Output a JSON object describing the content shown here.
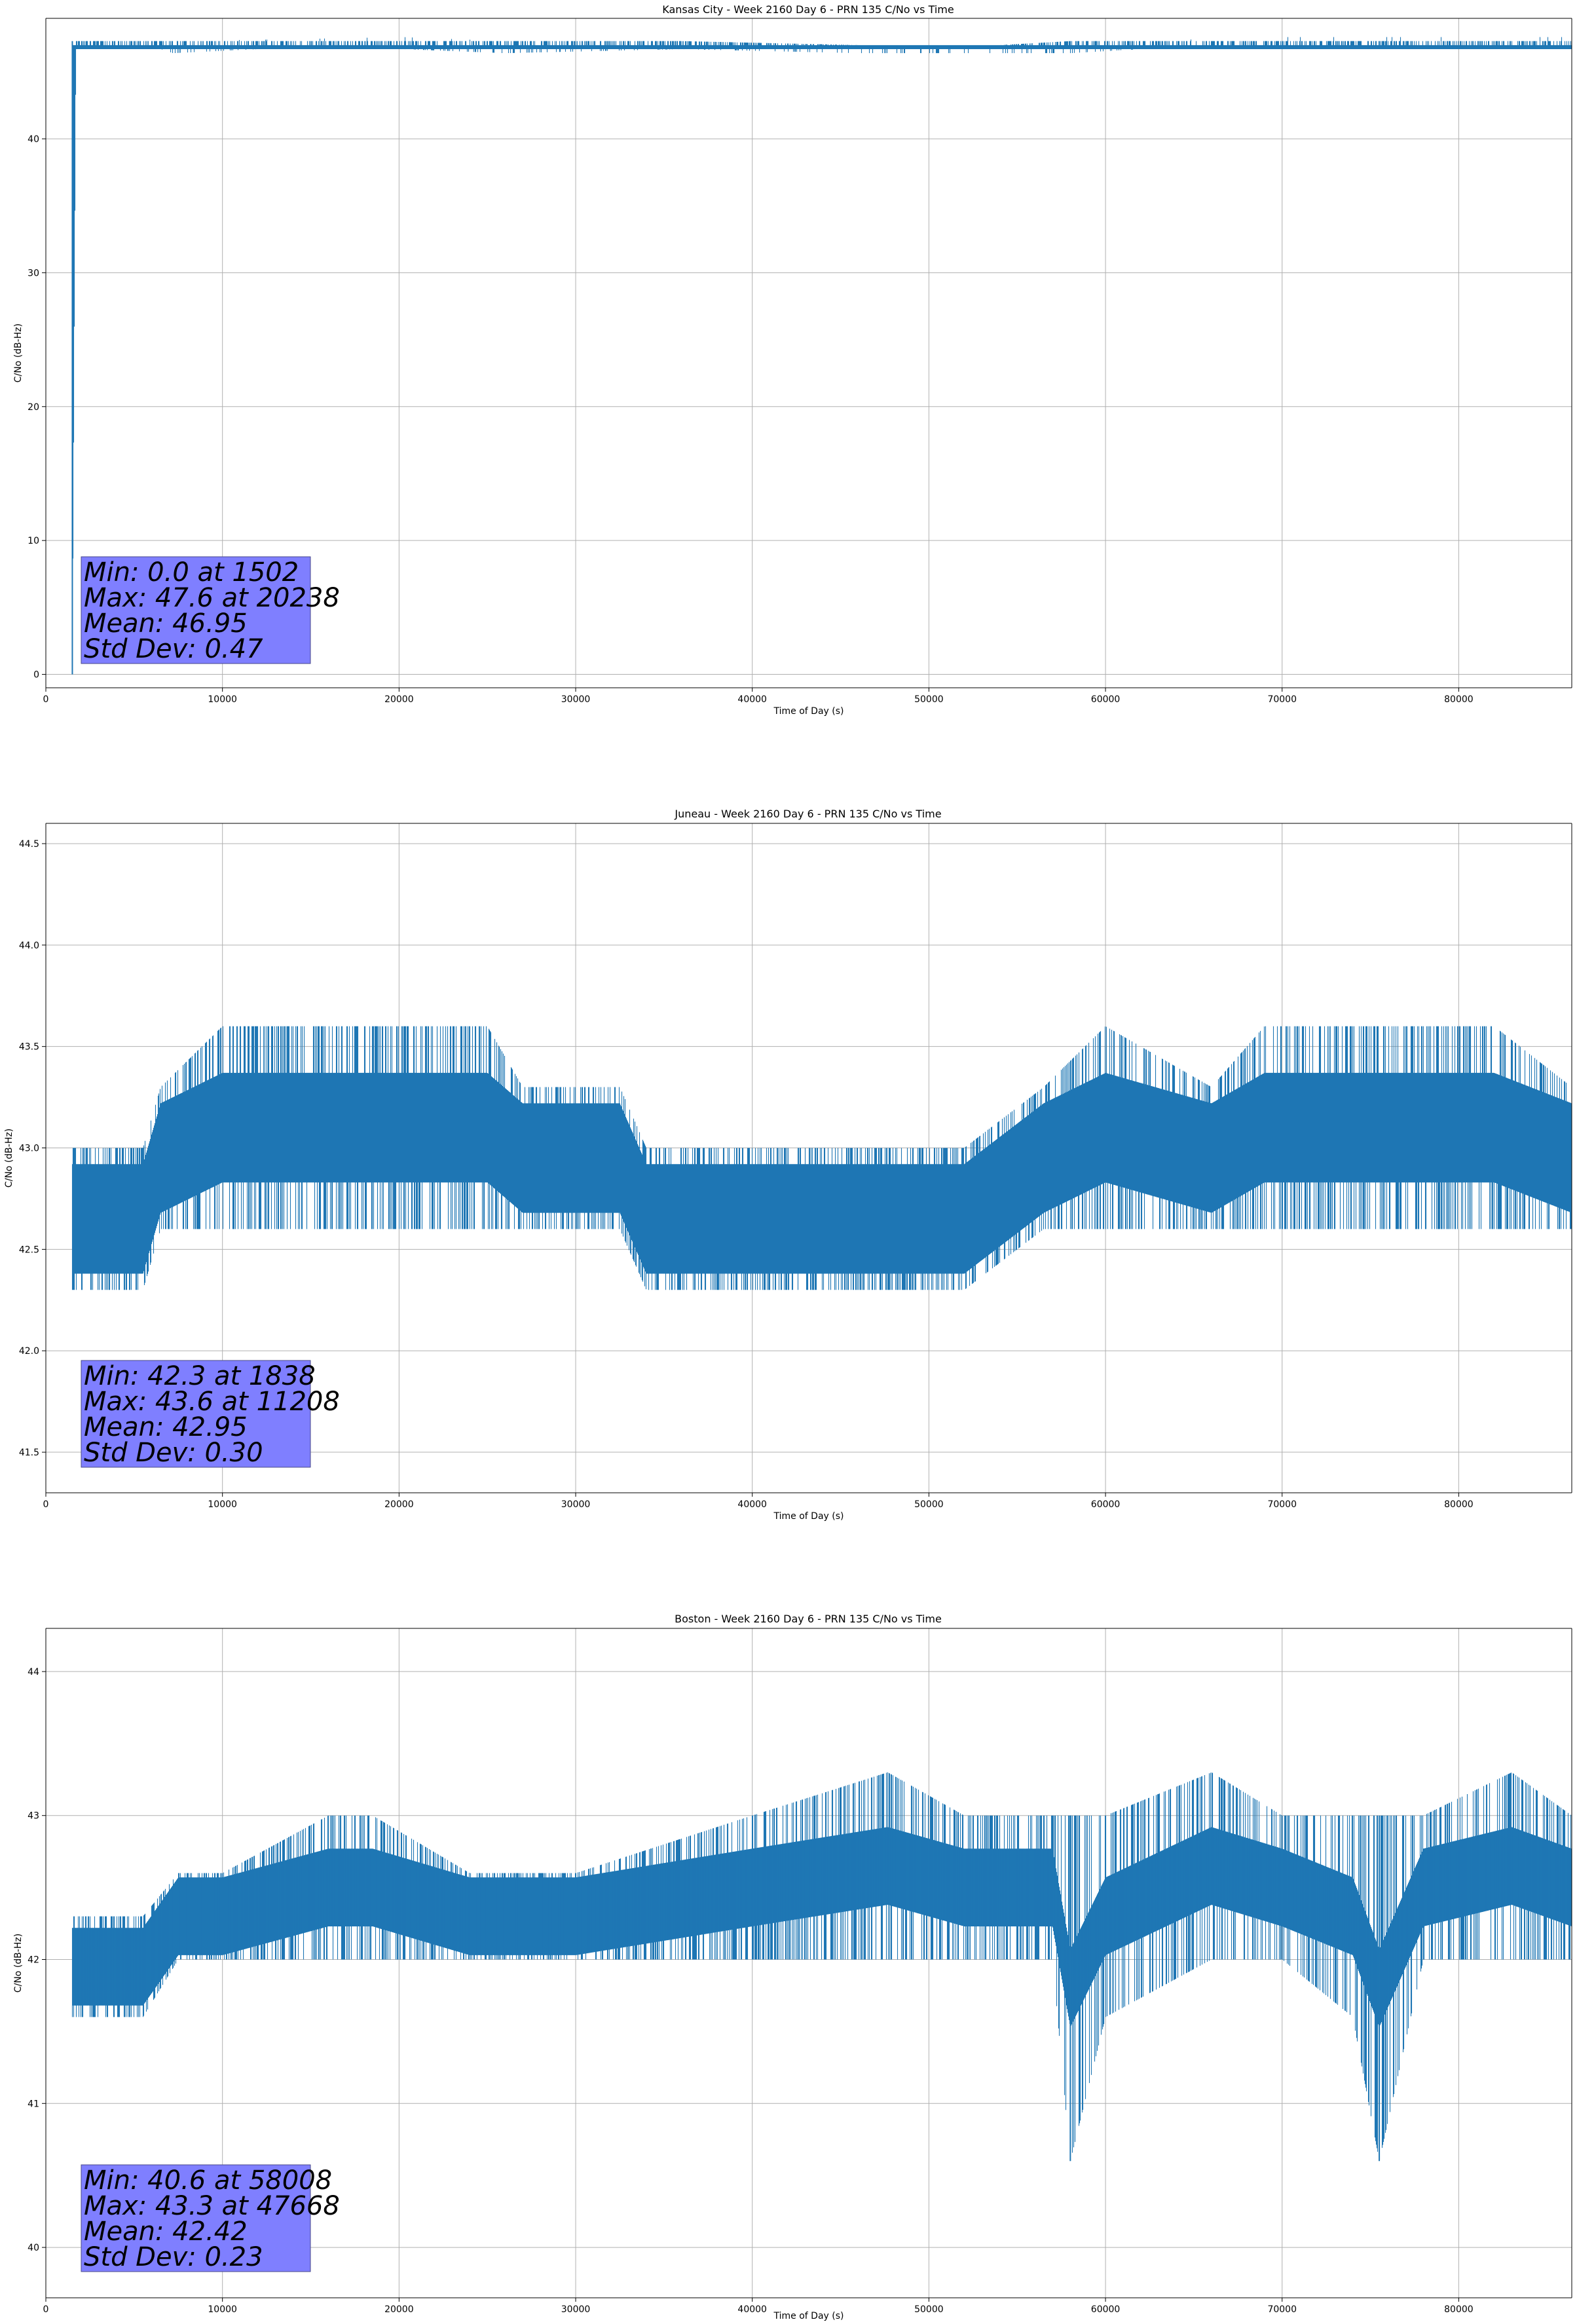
{
  "chart_data": [
    {
      "type": "line",
      "title": "Kansas City - Week 2160 Day 6 - PRN 135 C/No vs Time",
      "xlabel": "Time of Day (s)",
      "ylabel": "C/No (dB-Hz)",
      "xlim": [
        0,
        86400
      ],
      "ylim": [
        -1,
        49
      ],
      "xticks": [
        0,
        10000,
        20000,
        30000,
        40000,
        50000,
        60000,
        70000,
        80000
      ],
      "xtick_labels": [
        "0",
        "10000",
        "20000",
        "30000",
        "40000",
        "50000",
        "60000",
        "70000",
        "80000"
      ],
      "yticks": [
        0,
        10,
        20,
        30,
        40
      ],
      "ytick_labels": [
        "0",
        "10",
        "20",
        "30",
        "40"
      ],
      "grid": true,
      "color": "#1f77b4",
      "series": [
        {
          "band": [
            [
              1500,
              0.0,
              47.3
            ],
            [
              1700,
              46.7,
              47.3
            ],
            [
              6500,
              46.7,
              47.3
            ],
            [
              7200,
              46.4,
              47.3
            ],
            [
              12000,
              46.7,
              47.4
            ],
            [
              20238,
              46.7,
              47.6
            ],
            [
              26000,
              46.4,
              47.3
            ],
            [
              36000,
              46.7,
              47.3
            ],
            [
              46000,
              46.4,
              47.0
            ],
            [
              50000,
              46.2,
              47.0
            ],
            [
              54000,
              46.2,
              47.0
            ],
            [
              58000,
              46.4,
              47.3
            ],
            [
              62000,
              46.7,
              47.3
            ],
            [
              69000,
              46.7,
              47.6
            ],
            [
              86400,
              46.7,
              47.6
            ]
          ]
        }
      ],
      "stats": [
        "Min: 0.0 at 1502",
        "Max: 47.6 at 20238",
        "Mean: 46.95",
        "Std Dev: 0.47"
      ]
    },
    {
      "type": "line",
      "title": "Juneau - Week 2160 Day 6 - PRN 135 C/No vs Time",
      "xlabel": "Time of Day (s)",
      "ylabel": "C/No (dB-Hz)",
      "xlim": [
        0,
        86400
      ],
      "ylim": [
        41.3,
        44.6
      ],
      "xticks": [
        0,
        10000,
        20000,
        30000,
        40000,
        50000,
        60000,
        70000,
        80000
      ],
      "xtick_labels": [
        "0",
        "10000",
        "20000",
        "30000",
        "40000",
        "50000",
        "60000",
        "70000",
        "80000"
      ],
      "yticks": [
        41.5,
        42.0,
        42.5,
        43.0,
        43.5,
        44.0,
        44.5
      ],
      "ytick_labels": [
        "41.5",
        "42.0",
        "42.5",
        "43.0",
        "43.5",
        "44.0",
        "44.5"
      ],
      "grid": true,
      "color": "#1f77b4",
      "series": [
        {
          "band": [
            [
              1500,
              42.3,
              43.0
            ],
            [
              2000,
              42.3,
              43.0
            ],
            [
              5500,
              42.3,
              43.0
            ],
            [
              6500,
              42.6,
              43.3
            ],
            [
              10000,
              42.6,
              43.6
            ],
            [
              14500,
              42.6,
              43.6
            ],
            [
              18000,
              42.6,
              43.6
            ],
            [
              22000,
              42.6,
              43.6
            ],
            [
              25000,
              42.6,
              43.6
            ],
            [
              27000,
              42.6,
              43.3
            ],
            [
              32500,
              42.6,
              43.3
            ],
            [
              34000,
              42.3,
              43.0
            ],
            [
              40000,
              42.3,
              43.0
            ],
            [
              44000,
              42.3,
              43.0
            ],
            [
              52000,
              42.3,
              43.0
            ],
            [
              56500,
              42.6,
              43.3
            ],
            [
              60000,
              42.6,
              43.6
            ],
            [
              66000,
              42.6,
              43.3
            ],
            [
              69000,
              42.6,
              43.6
            ],
            [
              72000,
              42.6,
              43.6
            ],
            [
              82000,
              42.6,
              43.6
            ],
            [
              86400,
              42.6,
              43.3
            ]
          ]
        }
      ],
      "stats": [
        "Min: 42.3 at 1838",
        "Max: 43.6 at 11208",
        "Mean: 42.95",
        "Std Dev: 0.30"
      ]
    },
    {
      "type": "line",
      "title": "Boston - Week 2160 Day 6 - PRN 135 C/No vs Time",
      "xlabel": "Time of Day (s)",
      "ylabel": "C/No (dB-Hz)",
      "xlim": [
        0,
        86400
      ],
      "ylim": [
        39.65,
        44.3
      ],
      "xticks": [
        0,
        10000,
        20000,
        30000,
        40000,
        50000,
        60000,
        70000,
        80000
      ],
      "xtick_labels": [
        "0",
        "10000",
        "20000",
        "30000",
        "40000",
        "50000",
        "60000",
        "70000",
        "80000"
      ],
      "yticks": [
        40,
        41,
        42,
        43,
        44
      ],
      "ytick_labels": [
        "40",
        "41",
        "42",
        "43",
        "44"
      ],
      "grid": true,
      "color": "#1f77b4",
      "series": [
        {
          "band": [
            [
              1500,
              41.6,
              42.3
            ],
            [
              5500,
              41.6,
              42.3
            ],
            [
              7500,
              42.0,
              42.6
            ],
            [
              10000,
              42.0,
              42.6
            ],
            [
              16000,
              42.0,
              43.0
            ],
            [
              18500,
              42.0,
              43.0
            ],
            [
              24000,
              42.0,
              42.6
            ],
            [
              30000,
              42.0,
              42.6
            ],
            [
              40000,
              42.0,
              43.0
            ],
            [
              47668,
              42.0,
              43.3
            ],
            [
              52000,
              42.0,
              43.0
            ],
            [
              57000,
              42.0,
              43.0
            ],
            [
              58008,
              40.6,
              43.0
            ],
            [
              60000,
              41.6,
              43.0
            ],
            [
              66000,
              42.0,
              43.3
            ],
            [
              70000,
              42.0,
              43.0
            ],
            [
              74000,
              41.6,
              43.0
            ],
            [
              75500,
              40.6,
              43.0
            ],
            [
              78000,
              42.0,
              43.0
            ],
            [
              83000,
              42.0,
              43.3
            ],
            [
              86400,
              42.0,
              43.0
            ]
          ]
        }
      ],
      "stats": [
        "Min: 40.6 at 58008",
        "Max: 43.3 at 47668",
        "Mean: 42.42",
        "Std Dev: 0.23"
      ]
    }
  ]
}
